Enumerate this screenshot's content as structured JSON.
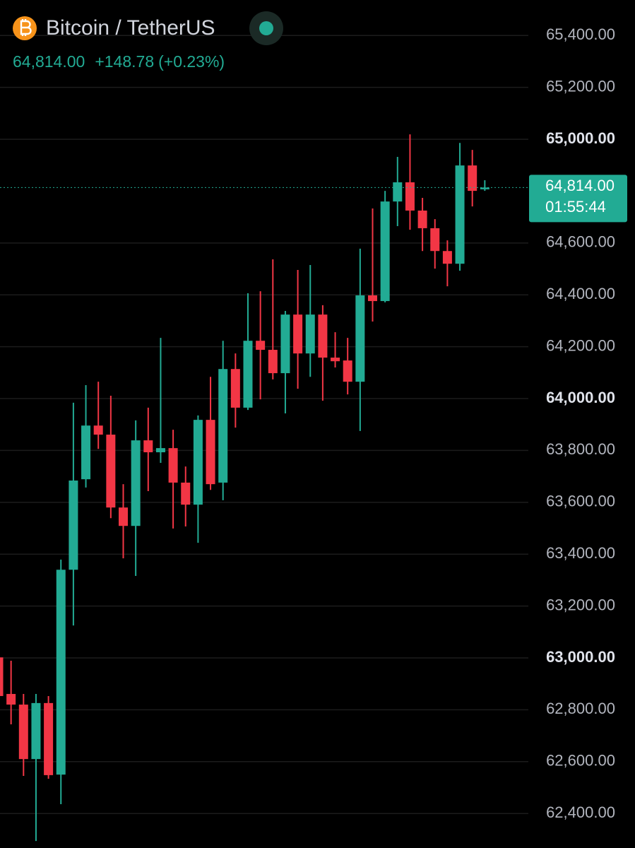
{
  "chart_data": {
    "type": "candlestick",
    "title": "Bitcoin / TetherUS",
    "last_price": {
      "value": 64814,
      "label": "64,814.00"
    },
    "change": {
      "value": 148.78,
      "label": "+148.78"
    },
    "change_percent": {
      "value": 0.23,
      "label": "(+0.23%)"
    },
    "countdown": "01:55:44",
    "up_color": "#22ab94",
    "down_color": "#f23645",
    "grid": true,
    "categories": [
      null,
      null,
      null,
      null,
      null,
      null,
      null,
      null,
      null,
      null,
      null,
      null,
      null,
      null,
      null,
      null,
      null,
      null,
      null,
      null,
      null,
      null,
      null,
      null,
      null,
      null,
      null,
      null,
      null,
      null,
      null,
      null,
      null,
      null,
      null,
      null,
      null,
      null,
      null,
      null
    ],
    "open": [
      63002,
      62861,
      62820,
      62610,
      62826,
      62550,
      63340,
      63689,
      63896,
      63861,
      63580,
      63509,
      63839,
      63793,
      63809,
      63676,
      63591,
      63918,
      63676,
      64114,
      63965,
      64223,
      64188,
      64098,
      64324,
      64174,
      64324,
      64158,
      64147,
      64065,
      64398,
      64376,
      64760,
      64834,
      64725,
      64657,
      64569,
      64520,
      64899,
      64807
    ],
    "high": [
      63207,
      62989,
      62861,
      62861,
      62853,
      63379,
      63984,
      64052,
      64065,
      64011,
      63670,
      63916,
      63965,
      64234,
      63880,
      63738,
      63935,
      64084,
      64223,
      64174,
      64406,
      64414,
      64537,
      64338,
      64496,
      64515,
      64360,
      64256,
      64234,
      64578,
      64733,
      64801,
      64932,
      65019,
      64774,
      64692,
      64610,
      64986,
      64959,
      64842
    ],
    "low": [
      62840,
      62744,
      62545,
      62294,
      62534,
      62436,
      63125,
      63657,
      63806,
      63539,
      63384,
      63316,
      63643,
      63752,
      63499,
      63507,
      63444,
      63648,
      63608,
      63888,
      63956,
      63997,
      64074,
      63943,
      64038,
      64084,
      63992,
      64120,
      64016,
      63875,
      64297,
      64371,
      64665,
      64651,
      64569,
      64501,
      64433,
      64493,
      64741,
      64801
    ],
    "close": [
      62853,
      62820,
      62610,
      62826,
      62548,
      63340,
      63684,
      63896,
      63861,
      63580,
      63509,
      63839,
      63793,
      63809,
      63676,
      63591,
      63918,
      63670,
      64114,
      63965,
      64223,
      64188,
      64098,
      64324,
      64174,
      64324,
      64158,
      64144,
      64065,
      64398,
      64376,
      64760,
      64834,
      64725,
      64657,
      64569,
      64520,
      64899,
      64801,
      64814
    ],
    "ylim": [
      62267,
      65537
    ],
    "yticks": [
      {
        "value": 62400,
        "label": "62,400.00"
      },
      {
        "value": 62600,
        "label": "62,600.00"
      },
      {
        "value": 62800,
        "label": "62,800.00"
      },
      {
        "value": 63000,
        "label": "63,000.00"
      },
      {
        "value": 63200,
        "label": "63,200.00"
      },
      {
        "value": 63400,
        "label": "63,400.00"
      },
      {
        "value": 63600,
        "label": "63,600.00"
      },
      {
        "value": 63800,
        "label": "63,800.00"
      },
      {
        "value": 64000,
        "label": "64,000.00"
      },
      {
        "value": 64200,
        "label": "64,200.00"
      },
      {
        "value": 64400,
        "label": "64,400.00"
      },
      {
        "value": 64600,
        "label": "64,600.00"
      },
      {
        "value": 65000,
        "label": "65,000.00"
      },
      {
        "value": 65200,
        "label": "65,200.00"
      },
      {
        "value": 65400,
        "label": "65,400.00"
      }
    ]
  }
}
